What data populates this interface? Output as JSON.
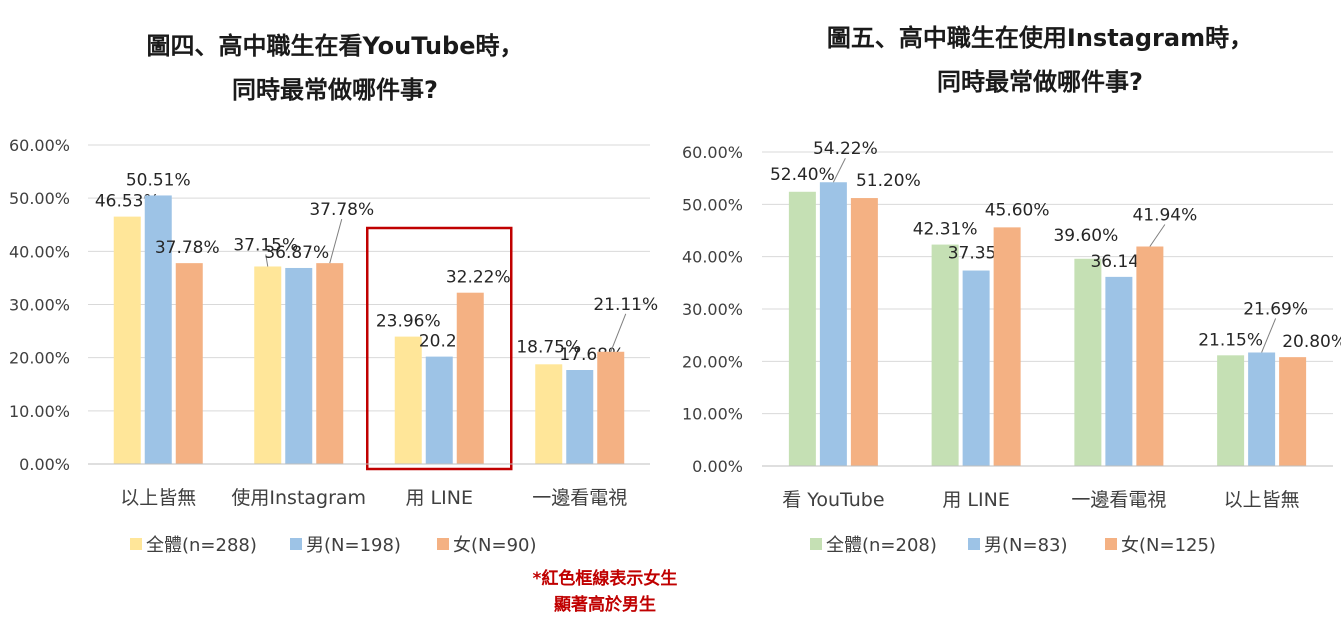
{
  "chart_data": [
    {
      "type": "bar",
      "title_line1": "圖四、高中職生在看YouTube時，",
      "title_line2": "同時最常做哪件事?",
      "categories": [
        "以上皆無",
        "使用Instagram",
        "用 LINE",
        "一邊看電視"
      ],
      "series": [
        {
          "name": "全體(n=288)",
          "color": "#ffe699",
          "values": [
            46.53,
            37.15,
            23.96,
            18.75
          ],
          "labels": [
            "46.53%",
            "37.15%",
            "23.96%",
            "18.75%"
          ]
        },
        {
          "name": "男(N=198)",
          "color": "#9dc3e6",
          "values": [
            50.51,
            36.87,
            20.2,
            17.68
          ],
          "labels": [
            "50.51%",
            "36.87%",
            "20.20%",
            "17.68%"
          ]
        },
        {
          "name": "女(N=90)",
          "color": "#f4b183",
          "values": [
            37.78,
            37.78,
            32.22,
            21.11
          ],
          "labels": [
            "37.78%",
            "37.78%",
            "32.22%",
            "21.11%"
          ]
        }
      ],
      "yticks": [
        "0.00%",
        "10.00%",
        "20.00%",
        "30.00%",
        "40.00%",
        "50.00%",
        "60.00%"
      ],
      "ylim": [
        0,
        60
      ],
      "grid": true,
      "legend": "bottom",
      "highlight_category": "用 LINE",
      "highlight_color": "#c00000"
    },
    {
      "type": "bar",
      "title_line1": "圖五、高中職生在使用Instagram時，",
      "title_line2": "同時最常做哪件事?",
      "categories": [
        "看 YouTube",
        "用 LINE",
        "一邊看電視",
        "以上皆無"
      ],
      "series": [
        {
          "name": "全體(n=208)",
          "color": "#c5e0b4",
          "values": [
            52.4,
            42.31,
            39.6,
            21.15
          ],
          "labels": [
            "52.40%",
            "42.31%",
            "39.60%",
            "21.15%"
          ]
        },
        {
          "name": "男(N=83)",
          "color": "#9dc3e6",
          "values": [
            54.22,
            37.35,
            36.14,
            21.69
          ],
          "labels": [
            "54.22%",
            "37.35%",
            "36.14%",
            "21.69%"
          ]
        },
        {
          "name": "女(N=125)",
          "color": "#f4b183",
          "values": [
            51.2,
            45.6,
            41.94,
            20.8
          ],
          "labels": [
            "51.20%",
            "45.60%",
            "41.94%",
            "20.80%"
          ]
        }
      ],
      "yticks": [
        "0.00%",
        "10.00%",
        "20.00%",
        "30.00%",
        "40.00%",
        "50.00%",
        "60.00%"
      ],
      "ylim": [
        0,
        60
      ],
      "grid": true,
      "legend": "bottom"
    }
  ],
  "note": {
    "line1": "*紅色框線表示女生",
    "line2": "顯著高於男生"
  }
}
